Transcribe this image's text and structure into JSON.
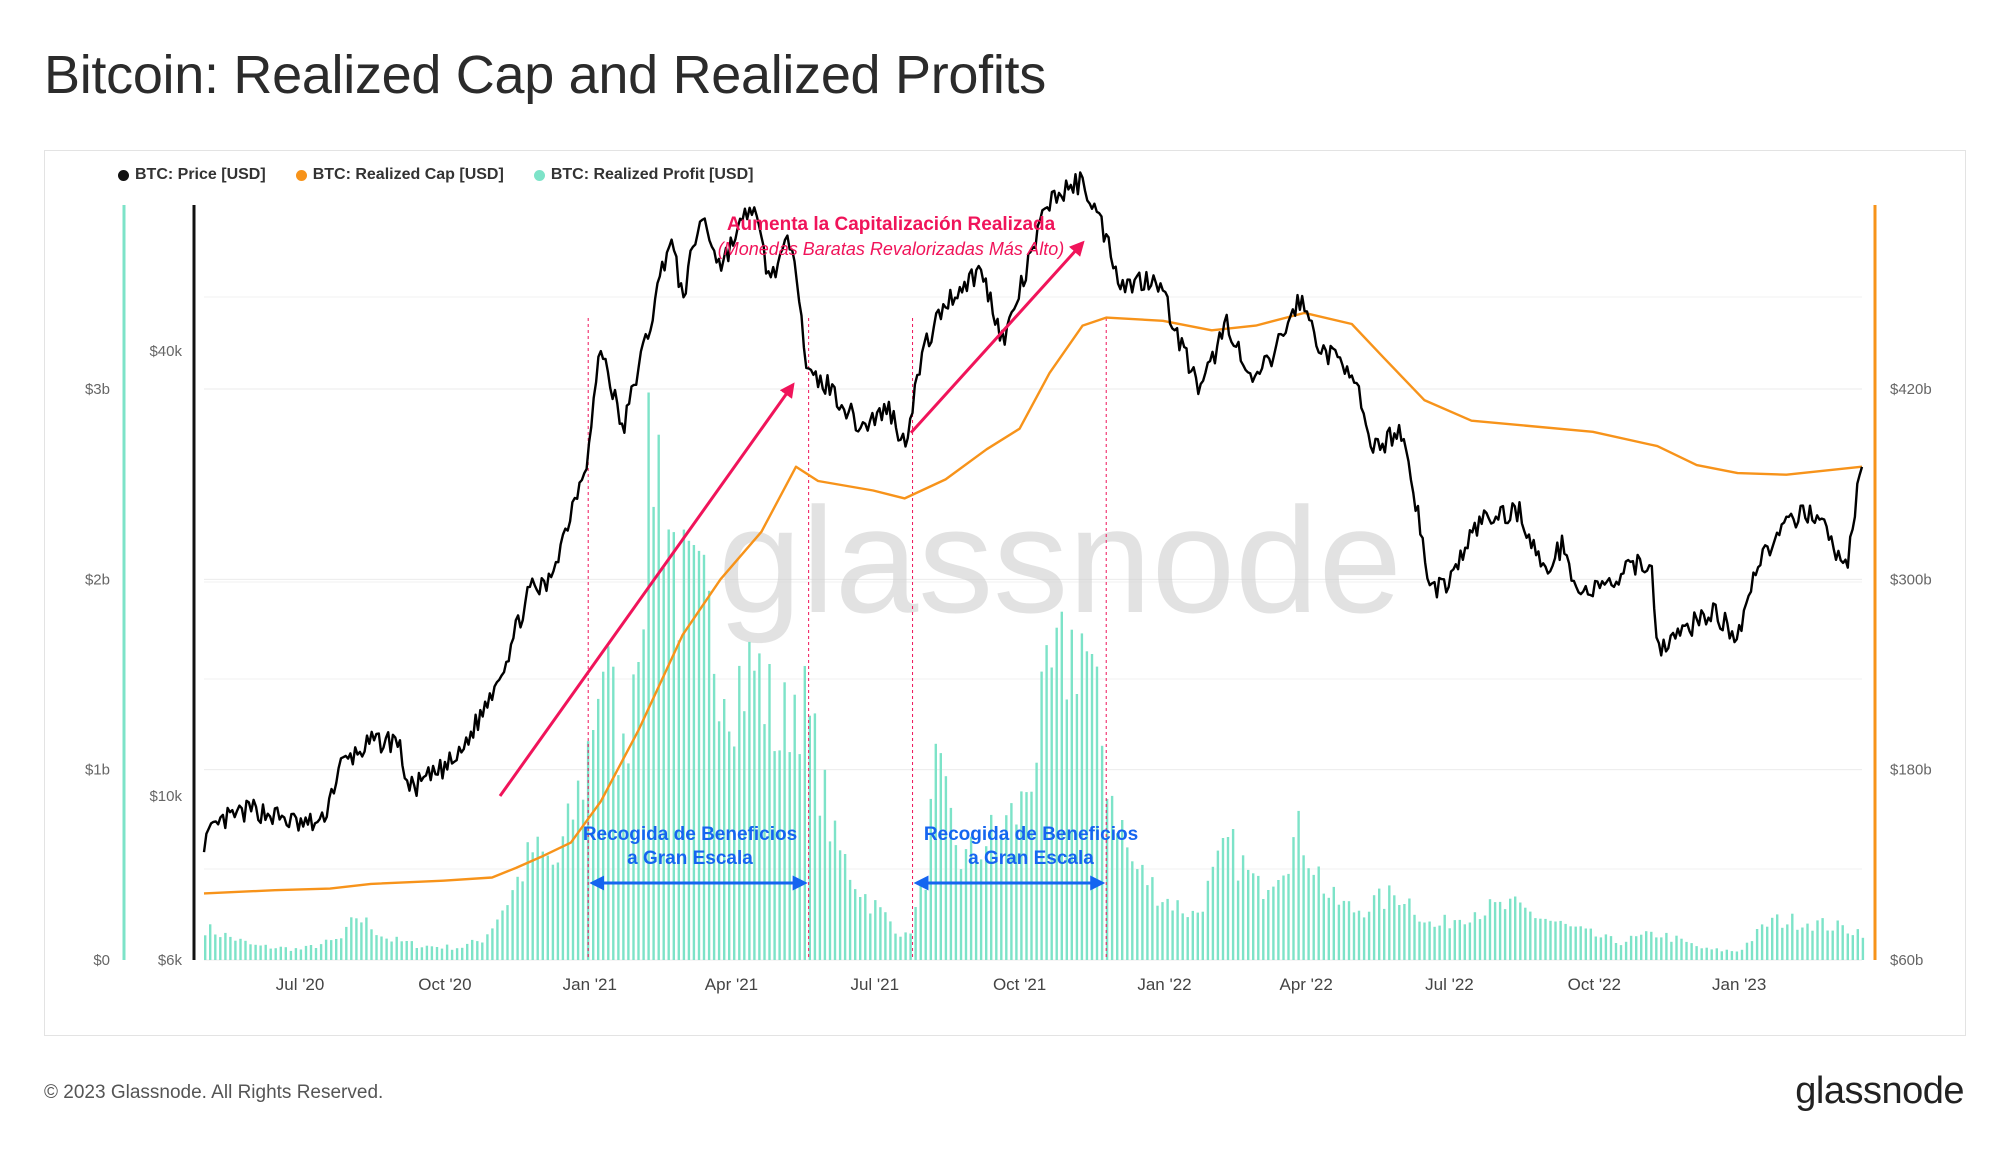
{
  "page": {
    "title": "Bitcoin: Realized Cap and Realized Profits",
    "footer": "© 2023 Glassnode. All Rights Reserved.",
    "brand": "glassnode",
    "watermark": "glassnode"
  },
  "colors": {
    "price": "#000000",
    "realized_cap": "#f7931a",
    "realized_profit": "#7de3c8",
    "annotation_red": "#f0145a",
    "annotation_blue": "#1565f0"
  },
  "chart_data": {
    "type": "line",
    "title": "Bitcoin: Realized Cap and Realized Profits",
    "x_range": [
      "2020-05-01",
      "2023-03-20"
    ],
    "x_ticks": [
      {
        "date": "2020-07-01",
        "label": "Jul '20"
      },
      {
        "date": "2020-10-01",
        "label": "Oct '20"
      },
      {
        "date": "2021-01-01",
        "label": "Jan '21"
      },
      {
        "date": "2021-04-01",
        "label": "Apr '21"
      },
      {
        "date": "2021-07-01",
        "label": "Jul '21"
      },
      {
        "date": "2021-10-01",
        "label": "Oct '21"
      },
      {
        "date": "2022-01-01",
        "label": "Jan '22"
      },
      {
        "date": "2022-04-01",
        "label": "Apr '22"
      },
      {
        "date": "2022-07-01",
        "label": "Jul '22"
      },
      {
        "date": "2022-10-01",
        "label": "Oct '22"
      },
      {
        "date": "2023-01-01",
        "label": "Jan '23"
      }
    ],
    "axes": {
      "profit": {
        "label": "",
        "min": 0,
        "max": 3.0,
        "scale": "linear",
        "unit": "USD bn",
        "ticks": [
          {
            "v": 0,
            "label": "$0"
          },
          {
            "v": 1,
            "label": "$1b"
          },
          {
            "v": 2,
            "label": "$2b"
          },
          {
            "v": 3,
            "label": "$3b"
          }
        ]
      },
      "price": {
        "label": "",
        "scale": "log",
        "unit": "USD",
        "ticks": [
          {
            "v": 6000,
            "label": "$6k"
          },
          {
            "v": 10000,
            "label": "$10k"
          },
          {
            "v": 40000,
            "label": "$40k"
          }
        ]
      },
      "realized_cap": {
        "label": "",
        "min": 60,
        "max": 420,
        "scale": "linear",
        "unit": "USD bn",
        "ticks": [
          {
            "v": 60,
            "label": "$60b"
          },
          {
            "v": 180,
            "label": "$180b"
          },
          {
            "v": 300,
            "label": "$300b"
          },
          {
            "v": 420,
            "label": "$420b"
          }
        ]
      }
    },
    "legend_position": "top-left",
    "grid": true,
    "series": [
      {
        "name": "BTC: Price [USD]",
        "axis": "price",
        "style": "line",
        "points": [
          [
            "2020-05-01",
            8700
          ],
          [
            "2020-05-15",
            9300
          ],
          [
            "2020-06-01",
            9600
          ],
          [
            "2020-06-15",
            9400
          ],
          [
            "2020-07-01",
            9150
          ],
          [
            "2020-07-15",
            9200
          ],
          [
            "2020-07-27",
            11000
          ],
          [
            "2020-08-15",
            11800
          ],
          [
            "2020-09-01",
            11900
          ],
          [
            "2020-09-08",
            10200
          ],
          [
            "2020-09-25",
            10700
          ],
          [
            "2020-10-10",
            11300
          ],
          [
            "2020-10-25",
            13000
          ],
          [
            "2020-11-10",
            15500
          ],
          [
            "2020-11-24",
            19000
          ],
          [
            "2020-12-05",
            19200
          ],
          [
            "2020-12-17",
            23000
          ],
          [
            "2020-12-31",
            29000
          ],
          [
            "2021-01-08",
            40500
          ],
          [
            "2021-01-22",
            31000
          ],
          [
            "2021-02-08",
            43000
          ],
          [
            "2021-02-21",
            57000
          ],
          [
            "2021-03-01",
            47000
          ],
          [
            "2021-03-13",
            61000
          ],
          [
            "2021-03-25",
            52000
          ],
          [
            "2021-04-14",
            63000
          ],
          [
            "2021-04-25",
            50000
          ],
          [
            "2021-05-10",
            57000
          ],
          [
            "2021-05-19",
            37000
          ],
          [
            "2021-06-01",
            36000
          ],
          [
            "2021-06-22",
            31500
          ],
          [
            "2021-07-10",
            33500
          ],
          [
            "2021-07-20",
            29800
          ],
          [
            "2021-08-01",
            40000
          ],
          [
            "2021-08-15",
            46500
          ],
          [
            "2021-09-06",
            51500
          ],
          [
            "2021-09-21",
            41000
          ],
          [
            "2021-10-05",
            51000
          ],
          [
            "2021-10-20",
            64000
          ],
          [
            "2021-11-10",
            68000
          ],
          [
            "2021-11-25",
            57000
          ],
          [
            "2021-12-05",
            49000
          ],
          [
            "2021-12-27",
            50500
          ],
          [
            "2022-01-10",
            41500
          ],
          [
            "2022-01-24",
            35000
          ],
          [
            "2022-02-10",
            44000
          ],
          [
            "2022-02-24",
            36000
          ],
          [
            "2022-03-10",
            39000
          ],
          [
            "2022-03-28",
            47000
          ],
          [
            "2022-04-11",
            40000
          ],
          [
            "2022-04-30",
            38000
          ],
          [
            "2022-05-12",
            29000
          ],
          [
            "2022-05-31",
            31500
          ],
          [
            "2022-06-14",
            22000
          ],
          [
            "2022-06-18",
            19000
          ],
          [
            "2022-07-01",
            19500
          ],
          [
            "2022-07-20",
            23500
          ],
          [
            "2022-08-14",
            24400
          ],
          [
            "2022-08-30",
            20000
          ],
          [
            "2022-09-12",
            22000
          ],
          [
            "2022-09-20",
            18800
          ],
          [
            "2022-10-10",
            19200
          ],
          [
            "2022-10-29",
            20700
          ],
          [
            "2022-11-07",
            20600
          ],
          [
            "2022-11-09",
            15900
          ],
          [
            "2022-11-20",
            16300
          ],
          [
            "2022-12-14",
            17800
          ],
          [
            "2022-12-31",
            16500
          ],
          [
            "2023-01-14",
            21000
          ],
          [
            "2023-01-31",
            23100
          ],
          [
            "2023-02-16",
            24500
          ],
          [
            "2023-03-10",
            20200
          ],
          [
            "2023-03-20",
            28000
          ]
        ]
      },
      {
        "name": "BTC: Realized Cap [USD]",
        "axis": "realized_cap",
        "style": "line",
        "points": [
          [
            "2020-05-01",
            102
          ],
          [
            "2020-06-15",
            104
          ],
          [
            "2020-07-20",
            105
          ],
          [
            "2020-08-15",
            108
          ],
          [
            "2020-09-30",
            110
          ],
          [
            "2020-10-31",
            112
          ],
          [
            "2020-11-15",
            118
          ],
          [
            "2020-12-01",
            125
          ],
          [
            "2020-12-20",
            134
          ],
          [
            "2021-01-08",
            160
          ],
          [
            "2021-02-01",
            205
          ],
          [
            "2021-03-01",
            265
          ],
          [
            "2021-03-25",
            300
          ],
          [
            "2021-04-20",
            330
          ],
          [
            "2021-05-12",
            371
          ],
          [
            "2021-05-26",
            362
          ],
          [
            "2021-06-30",
            356
          ],
          [
            "2021-07-20",
            351
          ],
          [
            "2021-08-15",
            363
          ],
          [
            "2021-09-10",
            382
          ],
          [
            "2021-10-01",
            395
          ],
          [
            "2021-10-20",
            430
          ],
          [
            "2021-11-10",
            460
          ],
          [
            "2021-11-25",
            465
          ],
          [
            "2021-12-31",
            463
          ],
          [
            "2022-01-31",
            457
          ],
          [
            "2022-02-28",
            460
          ],
          [
            "2022-03-31",
            468
          ],
          [
            "2022-04-30",
            461
          ],
          [
            "2022-05-20",
            440
          ],
          [
            "2022-06-15",
            413
          ],
          [
            "2022-07-15",
            400
          ],
          [
            "2022-09-30",
            393
          ],
          [
            "2022-11-10",
            384
          ],
          [
            "2022-12-05",
            372
          ],
          [
            "2022-12-31",
            367
          ],
          [
            "2023-01-31",
            366
          ],
          [
            "2023-03-20",
            371
          ]
        ]
      },
      {
        "name": "BTC: Realized Profit [USD]",
        "axis": "profit",
        "style": "area",
        "points": [
          [
            "2020-05-01",
            0.18
          ],
          [
            "2020-06-01",
            0.08
          ],
          [
            "2020-07-01",
            0.06
          ],
          [
            "2020-07-27",
            0.12
          ],
          [
            "2020-08-05",
            0.25
          ],
          [
            "2020-08-25",
            0.12
          ],
          [
            "2020-09-15",
            0.08
          ],
          [
            "2020-10-10",
            0.07
          ],
          [
            "2020-10-25",
            0.12
          ],
          [
            "2020-11-10",
            0.35
          ],
          [
            "2020-11-25",
            0.62
          ],
          [
            "2020-12-10",
            0.52
          ],
          [
            "2020-12-28",
            1.05
          ],
          [
            "2021-01-08",
            1.75
          ],
          [
            "2021-01-22",
            1.1
          ],
          [
            "2021-02-10",
            2.95
          ],
          [
            "2021-02-28",
            2.05
          ],
          [
            "2021-03-13",
            1.95
          ],
          [
            "2021-04-01",
            1.55
          ],
          [
            "2021-04-16",
            1.65
          ],
          [
            "2021-05-01",
            1.25
          ],
          [
            "2021-05-12",
            1.55
          ],
          [
            "2021-05-20",
            1.3
          ],
          [
            "2021-06-05",
            0.65
          ],
          [
            "2021-06-25",
            0.35
          ],
          [
            "2021-07-10",
            0.22
          ],
          [
            "2021-07-21",
            0.12
          ],
          [
            "2021-08-01",
            0.45
          ],
          [
            "2021-08-08",
            1.05
          ],
          [
            "2021-08-25",
            0.55
          ],
          [
            "2021-09-10",
            0.68
          ],
          [
            "2021-10-01",
            0.85
          ],
          [
            "2021-10-20",
            1.55
          ],
          [
            "2021-11-09",
            1.85
          ],
          [
            "2021-11-25",
            1.05
          ],
          [
            "2021-12-10",
            0.55
          ],
          [
            "2021-12-31",
            0.35
          ],
          [
            "2022-01-20",
            0.25
          ],
          [
            "2022-02-10",
            0.65
          ],
          [
            "2022-03-01",
            0.4
          ],
          [
            "2022-03-28",
            0.72
          ],
          [
            "2022-04-15",
            0.35
          ],
          [
            "2022-05-01",
            0.28
          ],
          [
            "2022-05-31",
            0.38
          ],
          [
            "2022-06-20",
            0.18
          ],
          [
            "2022-07-15",
            0.28
          ],
          [
            "2022-08-10",
            0.3
          ],
          [
            "2022-09-15",
            0.18
          ],
          [
            "2022-10-15",
            0.1
          ],
          [
            "2022-11-10",
            0.15
          ],
          [
            "2022-12-10",
            0.06
          ],
          [
            "2022-12-31",
            0.05
          ],
          [
            "2023-01-20",
            0.22
          ],
          [
            "2023-02-10",
            0.22
          ],
          [
            "2023-03-20",
            0.16
          ]
        ]
      }
    ],
    "annotations": [
      {
        "type": "text",
        "text": "Aumenta la Capitalización Realizada",
        "color": "red"
      },
      {
        "type": "text",
        "text": "(Monedas Baratas Revalorizadas Más Alto)",
        "color": "red",
        "italic": true
      },
      {
        "type": "arrow",
        "color": "red",
        "from": [
          "2020-11-05",
          10000
        ],
        "to": [
          "2021-05-10",
          36000
        ]
      },
      {
        "type": "arrow",
        "color": "red",
        "from": [
          "2021-07-24",
          31000
        ],
        "to": [
          "2021-11-10",
          56000
        ]
      },
      {
        "type": "text",
        "text": "Recogida de Beneficios",
        "color": "blue"
      },
      {
        "type": "text",
        "text": "a Gran Escala",
        "color": "blue"
      },
      {
        "type": "text",
        "text": "Recogida de Beneficios",
        "color": "blue"
      },
      {
        "type": "text",
        "text": "a Gran Escala",
        "color": "blue"
      },
      {
        "type": "double_arrow",
        "color": "blue",
        "from": "2020-12-31",
        "to": "2021-05-20"
      },
      {
        "type": "double_arrow",
        "color": "blue",
        "from": "2021-07-25",
        "to": "2021-11-25"
      },
      {
        "type": "vline",
        "date": "2020-12-31",
        "color": "red"
      },
      {
        "type": "vline",
        "date": "2021-05-20",
        "color": "red"
      },
      {
        "type": "vline",
        "date": "2021-07-25",
        "color": "red"
      },
      {
        "type": "vline",
        "date": "2021-11-25",
        "color": "red"
      }
    ]
  }
}
